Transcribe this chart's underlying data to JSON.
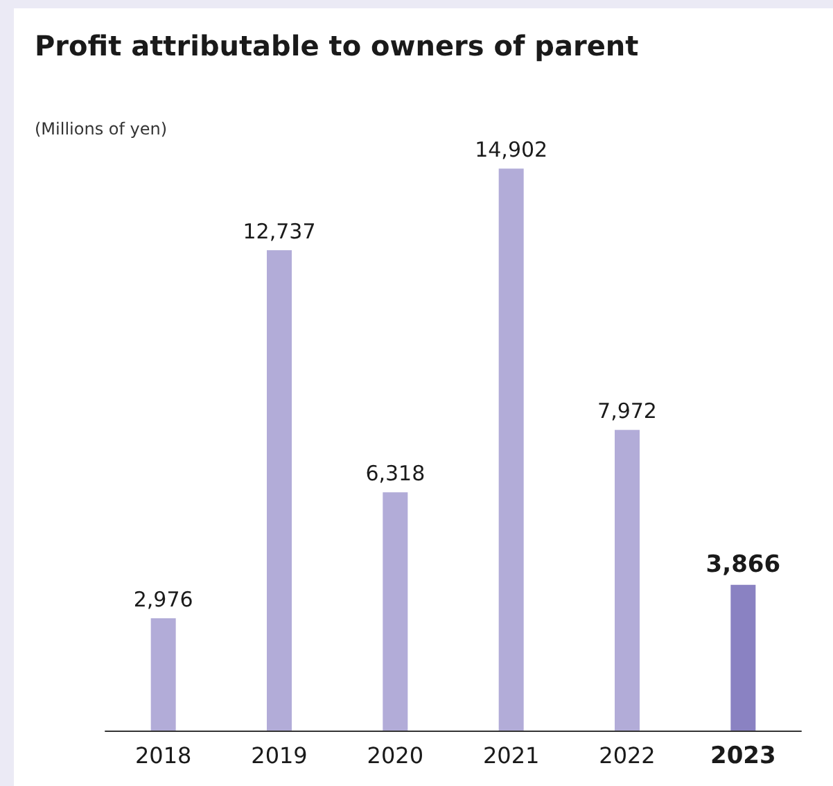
{
  "chart_data": {
    "type": "bar",
    "title": "Profit attributable to owners of parent",
    "annotations": [
      "(Millions of yen)"
    ],
    "categories": [
      "2018",
      "2019",
      "2020",
      "2021",
      "2022",
      "2023"
    ],
    "values": [
      2976,
      12737,
      6318,
      14902,
      7972,
      3866
    ],
    "colors": [
      "#b2acd8",
      "#b2acd8",
      "#b2acd8",
      "#b2acd8",
      "#b2acd8",
      "#8a82c2"
    ],
    "value_labels": [
      "2,976",
      "12,737",
      "6,318",
      "14,902",
      "7,972",
      "3,866"
    ]
  }
}
